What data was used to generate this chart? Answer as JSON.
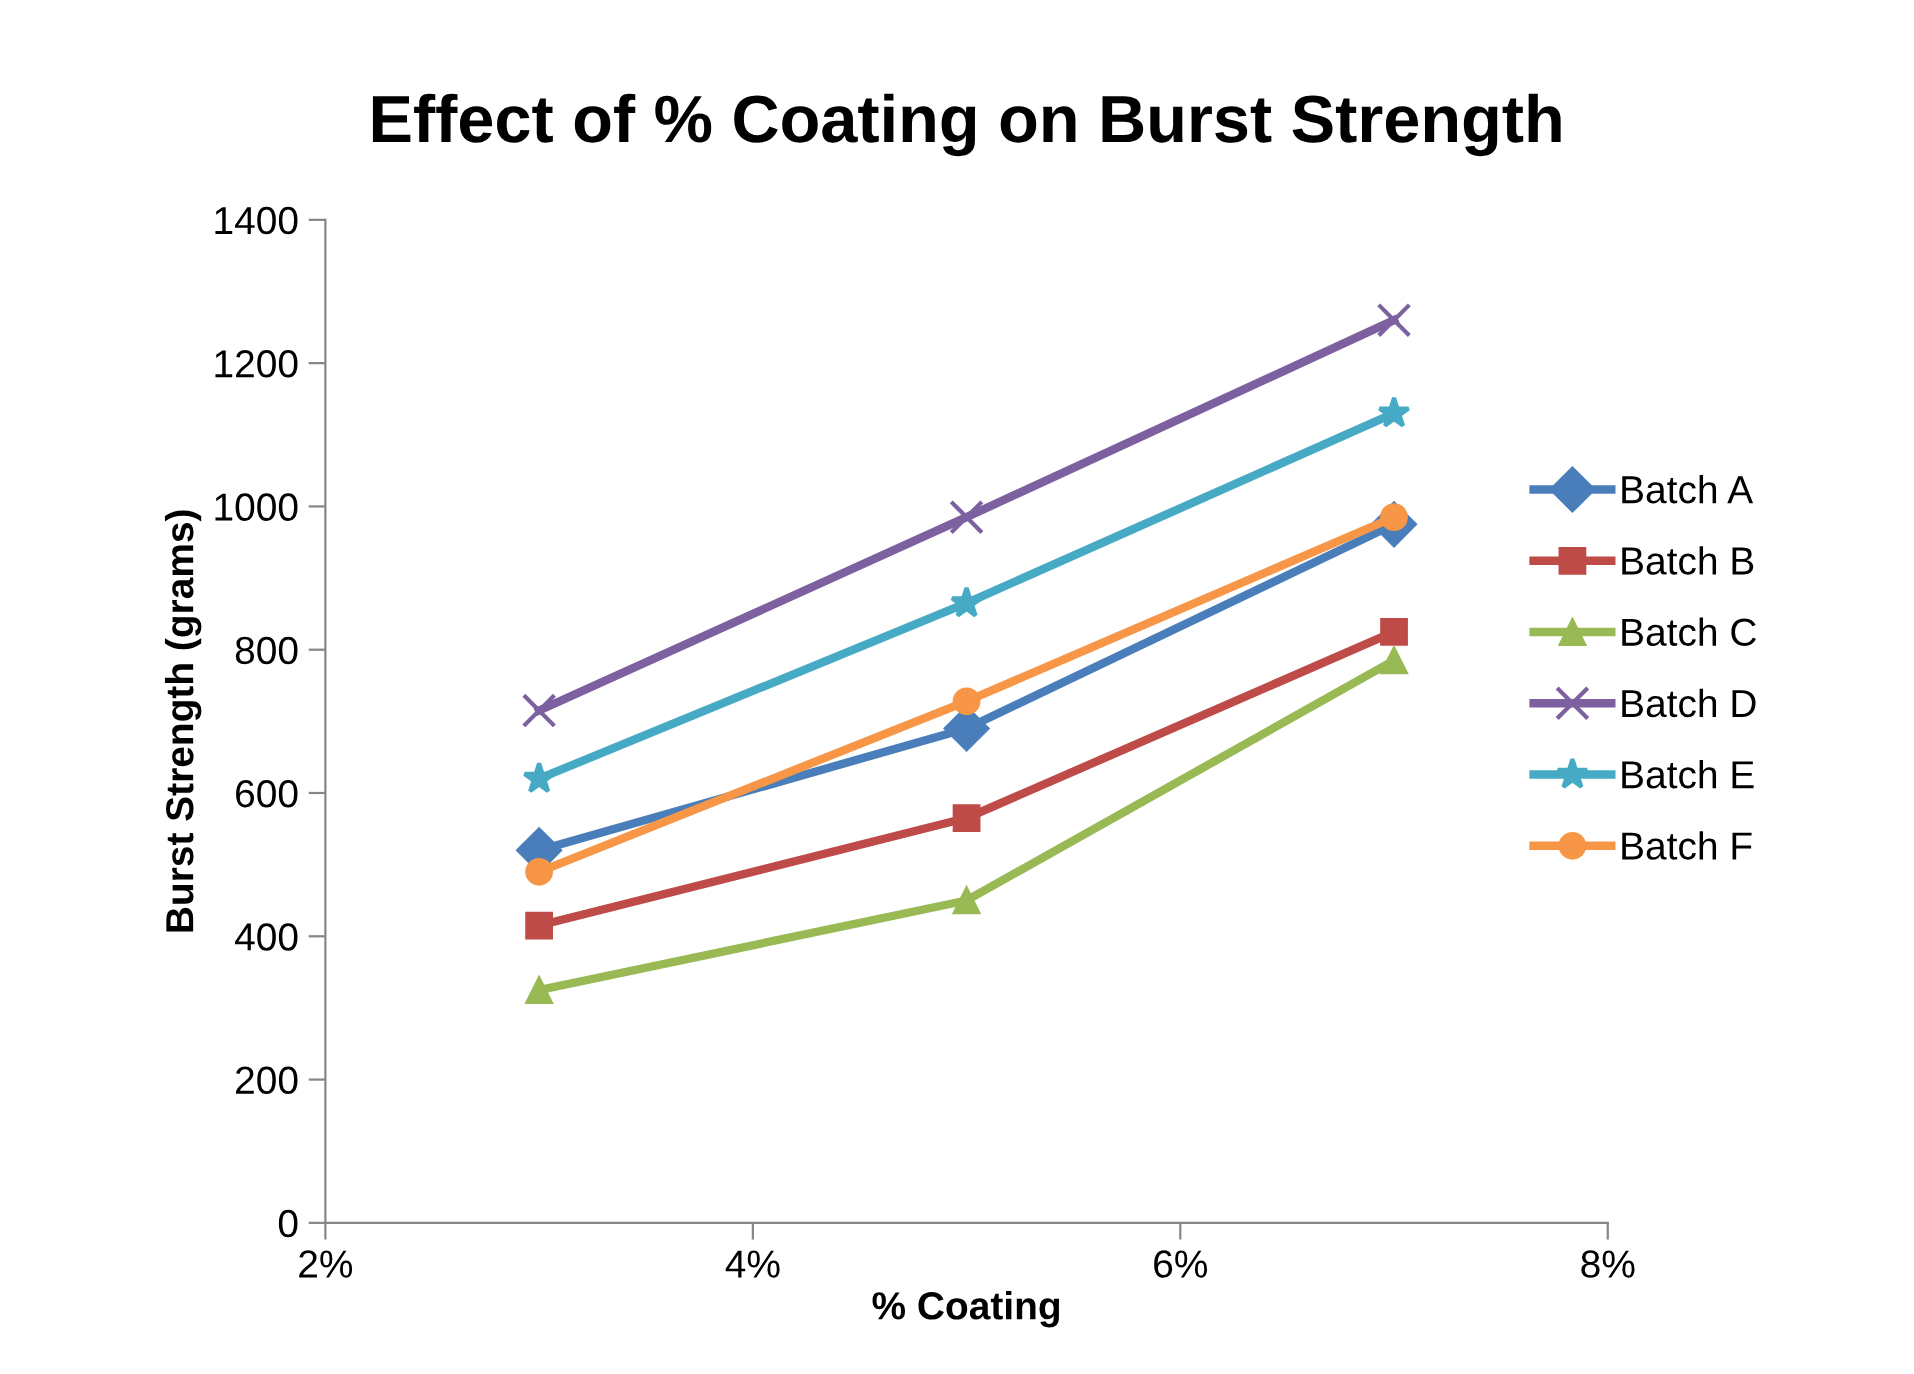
{
  "chart_data": {
    "type": "line",
    "title": "Effect of % Coating on Burst Strength",
    "xlabel": "% Coating",
    "ylabel": "Burst Strength (grams)",
    "x": [
      3,
      5,
      7
    ],
    "series": [
      {
        "name": "Batch A",
        "color": "#4a7ebb",
        "marker": "diamond",
        "values": [
          520,
          690,
          975
        ]
      },
      {
        "name": "Batch B",
        "color": "#be4b48",
        "marker": "square",
        "values": [
          415,
          565,
          825
        ]
      },
      {
        "name": "Batch C",
        "color": "#98b954",
        "marker": "triangle",
        "values": [
          325,
          450,
          785
        ]
      },
      {
        "name": "Batch D",
        "color": "#7d60a0",
        "marker": "cross",
        "values": [
          715,
          985,
          1260
        ]
      },
      {
        "name": "Batch E",
        "color": "#46aac5",
        "marker": "star",
        "values": [
          620,
          865,
          1130
        ]
      },
      {
        "name": "Batch F",
        "color": "#f79646",
        "marker": "circle",
        "values": [
          490,
          728,
          985
        ]
      }
    ],
    "xlim": [
      2,
      8
    ],
    "xticks": [
      {
        "value": 2,
        "label": "2%"
      },
      {
        "value": 4,
        "label": "4%"
      },
      {
        "value": 6,
        "label": "6%"
      },
      {
        "value": 8,
        "label": "8%"
      }
    ],
    "ylim": [
      0,
      1400
    ],
    "yticks": [
      0,
      200,
      400,
      600,
      800,
      1000,
      1200,
      1400
    ],
    "grid": false,
    "legend": "right",
    "line_style": "solid"
  }
}
